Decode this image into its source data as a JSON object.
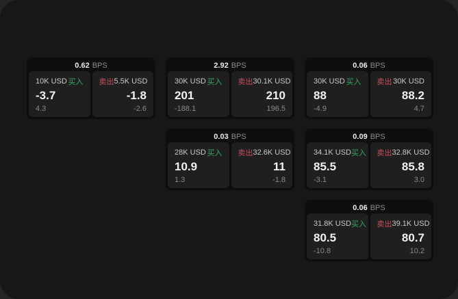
{
  "labels": {
    "bps_unit": "BPS",
    "buy": "买入",
    "sell": "卖出"
  },
  "colors": {
    "background": "#242424",
    "surface": "#171717",
    "card": "#0e0e0e",
    "panel": "#1f1f1f",
    "buy": "#3aa563",
    "sell": "#c64f5f"
  },
  "cards": [
    {
      "bps": "0.62",
      "buy": {
        "amount": "10K USD",
        "price": "-3.7",
        "delta": "4.3"
      },
      "sell": {
        "amount": "5.5K USD",
        "price": "-1.8",
        "delta": "-2.6"
      }
    },
    {
      "bps": "2.92",
      "buy": {
        "amount": "30K USD",
        "price": "201",
        "delta": "-188.1"
      },
      "sell": {
        "amount": "30.1K USD",
        "price": "210",
        "delta": "196.5"
      }
    },
    {
      "bps": "0.06",
      "buy": {
        "amount": "30K USD",
        "price": "88",
        "delta": "-4.9"
      },
      "sell": {
        "amount": "30K USD",
        "price": "88.2",
        "delta": "4.7"
      }
    },
    {
      "bps": "0.03",
      "buy": {
        "amount": "28K USD",
        "price": "10.9",
        "delta": "1.3"
      },
      "sell": {
        "amount": "32.6K USD",
        "price": "11",
        "delta": "-1.8"
      }
    },
    {
      "bps": "0.09",
      "buy": {
        "amount": "34.1K USD",
        "price": "85.5",
        "delta": "-3.1"
      },
      "sell": {
        "amount": "32.8K USD",
        "price": "85.8",
        "delta": "3.0"
      }
    },
    {
      "bps": "0.06",
      "buy": {
        "amount": "31.8K USD",
        "price": "80.5",
        "delta": "-10.8"
      },
      "sell": {
        "amount": "39.1K USD",
        "price": "80.7",
        "delta": "10.2"
      }
    }
  ]
}
